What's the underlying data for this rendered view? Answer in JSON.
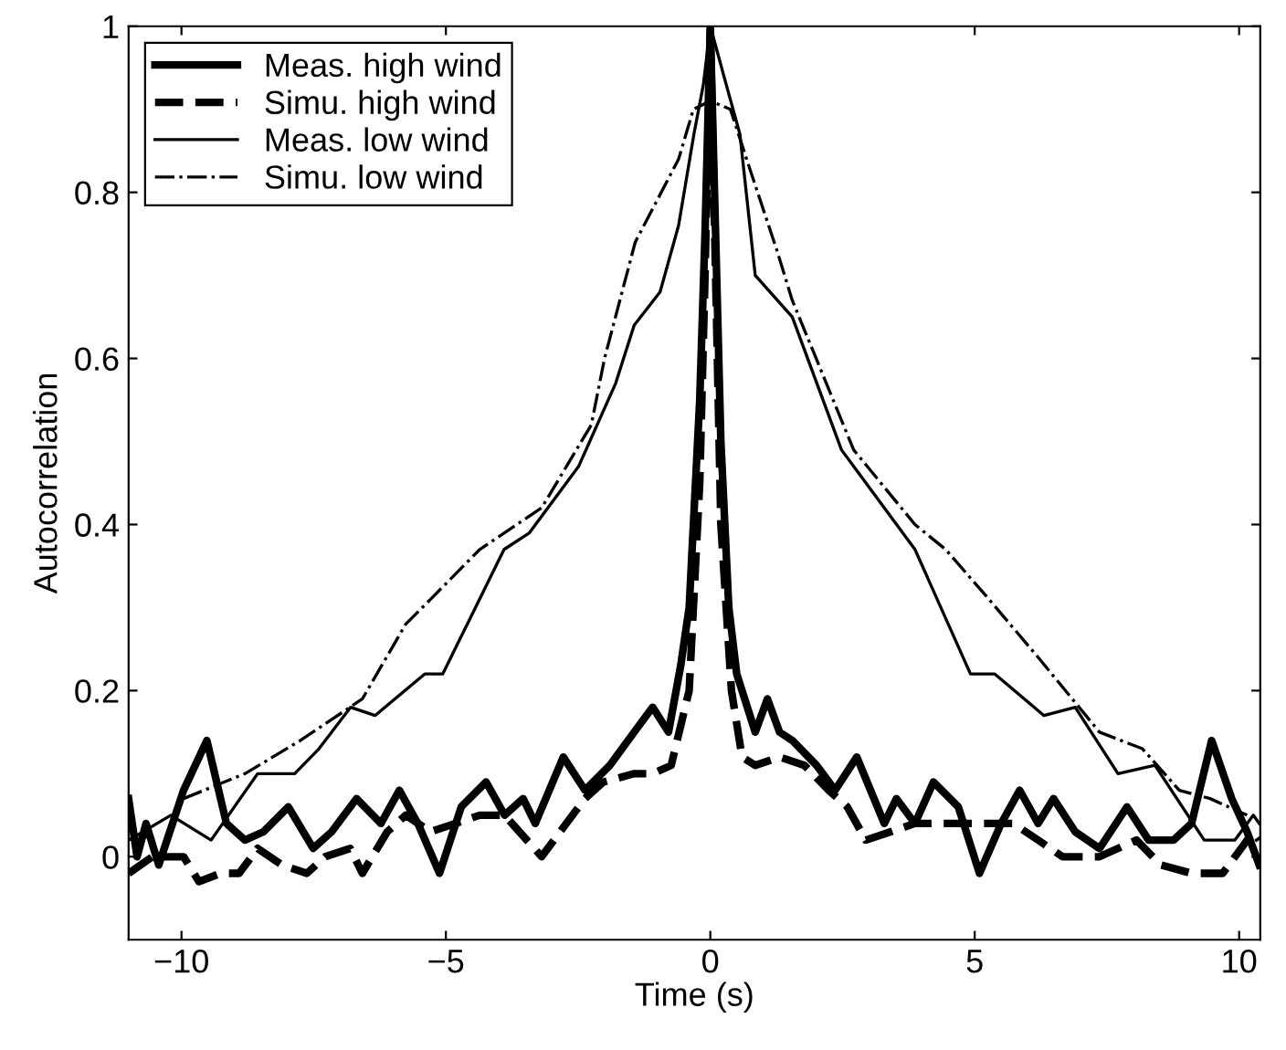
{
  "chart_data": {
    "type": "line",
    "xlabel": "Time (s)",
    "ylabel": "Autocorrelation",
    "xlim": [
      -11,
      10.4
    ],
    "ylim": [
      -0.1,
      1
    ],
    "xticks": [
      -10,
      -5,
      0,
      5,
      10
    ],
    "yticks": [
      0,
      0.2,
      0.4,
      0.6,
      0.8,
      1
    ],
    "grid": false,
    "legend": "top left",
    "series": [
      {
        "name": "Meas. high wind",
        "color": "#000000",
        "line_style": "solid",
        "x": [
          -11.0,
          -10.84,
          -10.67,
          -10.43,
          -9.96,
          -9.52,
          -9.15,
          -8.8,
          -8.45,
          -7.98,
          -7.51,
          -7.16,
          -6.69,
          -6.23,
          -5.88,
          -5.53,
          -5.12,
          -4.71,
          -4.24,
          -3.89,
          -3.54,
          -3.31,
          -2.78,
          -2.37,
          -1.9,
          -1.44,
          -1.09,
          -0.79,
          -0.56,
          -0.4,
          -0.2,
          -0.1,
          0,
          0.1,
          0.2,
          0.35,
          0.5,
          0.85,
          1.08,
          1.31,
          1.55,
          2.01,
          2.36,
          2.77,
          3.29,
          3.52,
          3.87,
          4.22,
          4.69,
          5.09,
          5.5,
          5.85,
          6.2,
          6.49,
          6.9,
          7.36,
          7.88,
          8.29,
          8.76,
          9.1,
          9.48,
          9.86,
          10.15,
          10.38
        ],
        "values": [
          0.07,
          0.0,
          0.04,
          -0.01,
          0.08,
          0.14,
          0.04,
          0.02,
          0.03,
          0.06,
          0.01,
          0.03,
          0.07,
          0.04,
          0.08,
          0.04,
          -0.02,
          0.06,
          0.09,
          0.05,
          0.07,
          0.04,
          0.12,
          0.08,
          0.11,
          0.15,
          0.18,
          0.15,
          0.23,
          0.3,
          0.55,
          0.75,
          1.0,
          0.75,
          0.5,
          0.3,
          0.22,
          0.15,
          0.19,
          0.15,
          0.14,
          0.11,
          0.08,
          0.12,
          0.04,
          0.07,
          0.04,
          0.09,
          0.06,
          -0.02,
          0.04,
          0.08,
          0.04,
          0.07,
          0.03,
          0.01,
          0.06,
          0.02,
          0.02,
          0.04,
          0.14,
          0.07,
          0.03,
          -0.01
        ]
      },
      {
        "name": "Simu. high wind",
        "color": "#000000",
        "line_style": "dashed",
        "x": [
          -11.0,
          -10.55,
          -9.96,
          -9.67,
          -9.26,
          -8.91,
          -8.56,
          -8.1,
          -7.63,
          -7.28,
          -6.81,
          -6.58,
          -6.11,
          -5.76,
          -5.29,
          -4.82,
          -4.36,
          -3.89,
          -3.19,
          -2.84,
          -2.37,
          -2.02,
          -1.44,
          -1.09,
          -0.74,
          -0.4,
          -0.2,
          -0.1,
          0,
          0.1,
          0.2,
          0.4,
          0.6,
          0.85,
          1.31,
          1.78,
          2.24,
          2.59,
          2.94,
          3.41,
          3.87,
          4.45,
          5.03,
          5.73,
          6.2,
          6.66,
          7.36,
          8.06,
          8.52,
          9.1,
          9.69,
          10.27,
          10.38
        ],
        "values": [
          -0.02,
          0.0,
          0.0,
          -0.03,
          -0.02,
          -0.02,
          0.01,
          -0.01,
          -0.02,
          0.0,
          0.01,
          -0.02,
          0.03,
          0.05,
          0.03,
          0.04,
          0.05,
          0.05,
          0.0,
          0.03,
          0.07,
          0.09,
          0.1,
          0.1,
          0.11,
          0.2,
          0.45,
          0.7,
          1.0,
          0.7,
          0.4,
          0.2,
          0.12,
          0.11,
          0.12,
          0.11,
          0.08,
          0.06,
          0.02,
          0.03,
          0.04,
          0.04,
          0.04,
          0.04,
          0.02,
          0.0,
          0.0,
          0.02,
          -0.01,
          -0.02,
          -0.02,
          0.03,
          0.02
        ]
      },
      {
        "name": "Meas. low wind",
        "color": "#000000",
        "line_style": "solid",
        "x": [
          -11.0,
          -10.2,
          -9.44,
          -8.56,
          -7.86,
          -7.4,
          -6.8,
          -6.34,
          -5.4,
          -5.06,
          -3.9,
          -3.42,
          -2.49,
          -1.79,
          -1.44,
          -0.95,
          -0.6,
          -0.31,
          -0.13,
          0,
          0.3,
          0.56,
          0.85,
          1.55,
          2.48,
          3.87,
          4.92,
          5.38,
          6.31,
          6.9,
          7.71,
          8.41,
          9.34,
          9.92,
          10.27,
          10.38
        ],
        "values": [
          0.02,
          0.05,
          0.02,
          0.1,
          0.1,
          0.13,
          0.18,
          0.17,
          0.22,
          0.22,
          0.37,
          0.39,
          0.47,
          0.57,
          0.64,
          0.68,
          0.76,
          0.87,
          0.93,
          1.0,
          0.93,
          0.87,
          0.7,
          0.65,
          0.49,
          0.37,
          0.22,
          0.22,
          0.17,
          0.18,
          0.1,
          0.11,
          0.02,
          0.02,
          0.05,
          0.04
        ]
      },
      {
        "name": "Simu. low wind",
        "color": "#000000",
        "line_style": "dashdot",
        "x": [
          -9.96,
          -8.8,
          -7.75,
          -6.58,
          -5.76,
          -5.29,
          -4.36,
          -3.19,
          -2.25,
          -2.0,
          -1.42,
          -0.6,
          -0.32,
          0,
          0.38,
          0.79,
          1.26,
          1.55,
          2.71,
          3.87,
          4.45,
          5.27,
          6.2,
          7.36,
          8.17,
          8.87,
          9.45,
          10.15
        ],
        "values": [
          0.07,
          0.1,
          0.14,
          0.19,
          0.28,
          0.31,
          0.37,
          0.42,
          0.52,
          0.6,
          0.74,
          0.84,
          0.9,
          0.91,
          0.9,
          0.82,
          0.73,
          0.67,
          0.49,
          0.4,
          0.37,
          0.31,
          0.24,
          0.15,
          0.13,
          0.08,
          0.07,
          0.05
        ]
      }
    ]
  }
}
